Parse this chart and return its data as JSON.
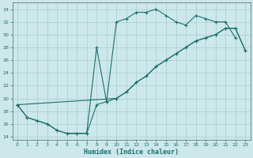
{
  "xlabel": "Humidex (Indice chaleur)",
  "bg_color": "#cce8ea",
  "grid_color": "#aacccc",
  "line_color": "#1e6e6e",
  "xlim": [
    -0.5,
    23.5
  ],
  "ylim": [
    13.5,
    35.0
  ],
  "xticks": [
    0,
    1,
    2,
    3,
    4,
    5,
    6,
    7,
    8,
    9,
    10,
    11,
    12,
    13,
    14,
    15,
    16,
    17,
    18,
    19,
    20,
    21,
    22,
    23
  ],
  "yticks": [
    14,
    16,
    18,
    20,
    22,
    24,
    26,
    28,
    30,
    32,
    34
  ],
  "curve1_x": [
    0,
    1,
    2,
    3,
    4,
    5,
    6,
    7,
    8,
    9,
    10,
    11,
    12,
    13,
    14,
    15,
    16,
    17,
    18,
    19,
    20,
    21,
    22
  ],
  "curve1_y": [
    19,
    17,
    16.5,
    16,
    15,
    14.5,
    14.5,
    14.5,
    28,
    19.5,
    32,
    32.5,
    33.5,
    33.5,
    34,
    33,
    32,
    31.5,
    33,
    32.5,
    32,
    32,
    29.5
  ],
  "curve2_x": [
    0,
    1,
    2,
    3,
    4,
    5,
    6,
    7,
    8,
    9,
    10,
    11,
    12,
    13,
    14,
    15,
    16,
    17,
    18,
    19,
    20,
    21,
    22,
    23
  ],
  "curve2_y": [
    19,
    17,
    16.5,
    16,
    15,
    14.5,
    14.5,
    14.5,
    19,
    19.5,
    20,
    21,
    22.5,
    23.5,
    25,
    26,
    27,
    28,
    29,
    29.5,
    30,
    31,
    31,
    27.5
  ],
  "curve3_x": [
    0,
    10,
    11,
    12,
    13,
    14,
    15,
    16,
    17,
    18,
    19,
    20,
    21,
    22,
    23
  ],
  "curve3_y": [
    19,
    20,
    21,
    22.5,
    23.5,
    25,
    26,
    27,
    28,
    29,
    29.5,
    30,
    31,
    31,
    27.5
  ]
}
